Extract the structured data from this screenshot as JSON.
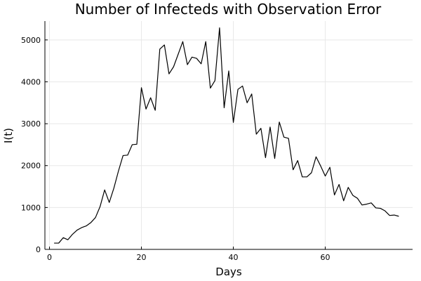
{
  "chart_data": {
    "type": "line",
    "title": "Number of Infecteds with Observation Error",
    "xlabel": "Days",
    "ylabel": "I(t)",
    "xlim": [
      -1,
      79
    ],
    "ylim": [
      0,
      5450
    ],
    "xticks": [
      0,
      20,
      40,
      60
    ],
    "yticks": [
      0,
      1000,
      2000,
      3000,
      4000,
      5000
    ],
    "grid": true,
    "legend": "none",
    "series": [
      {
        "color": "#000000",
        "x": [
          1,
          2,
          3,
          4,
          5,
          6,
          7,
          8,
          9,
          10,
          11,
          12,
          13,
          14,
          15,
          16,
          17,
          18,
          19,
          20,
          21,
          22,
          23,
          24,
          25,
          26,
          27,
          28,
          29,
          30,
          31,
          32,
          33,
          34,
          35,
          36,
          37,
          38,
          39,
          40,
          41,
          42,
          43,
          44,
          45,
          46,
          47,
          48,
          49,
          50,
          51,
          52,
          53,
          54,
          55,
          56,
          57,
          58,
          59,
          60,
          61,
          62,
          63,
          64,
          65,
          66,
          67,
          68,
          69,
          70,
          71,
          72,
          73,
          74,
          75,
          76
        ],
        "y": [
          150,
          150,
          280,
          230,
          360,
          460,
          520,
          560,
          640,
          760,
          1020,
          1420,
          1120,
          1460,
          1870,
          2240,
          2250,
          2500,
          2510,
          3860,
          3350,
          3620,
          3320,
          4780,
          4880,
          4190,
          4360,
          4660,
          4960,
          4410,
          4590,
          4560,
          4430,
          4960,
          3850,
          4030,
          5290,
          3380,
          4260,
          3030,
          3820,
          3900,
          3500,
          3710,
          2750,
          2890,
          2190,
          2920,
          2170,
          3040,
          2680,
          2650,
          1900,
          2120,
          1730,
          1730,
          1830,
          2210,
          1990,
          1750,
          1960,
          1300,
          1550,
          1160,
          1480,
          1290,
          1220,
          1060,
          1080,
          1110,
          990,
          980,
          920,
          810,
          820,
          790
        ]
      }
    ]
  }
}
